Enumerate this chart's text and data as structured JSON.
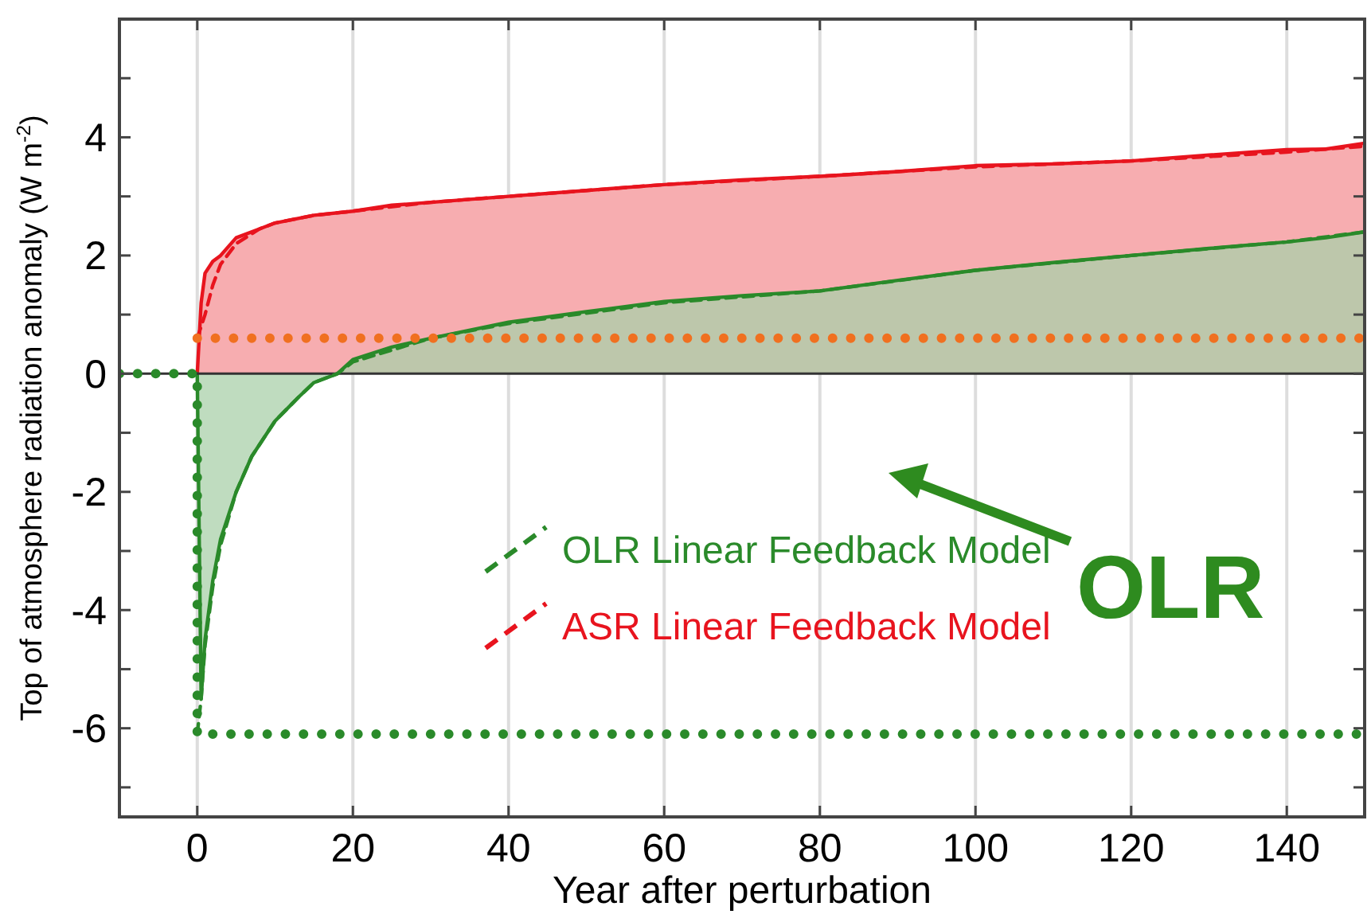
{
  "chart_data": {
    "type": "line",
    "xlabel": "Year after perturbation",
    "ylabel": "Top of atmosphere radiation anomaly (W m$^{-2}$)",
    "xlim": [
      -10,
      150
    ],
    "xticks": [
      0,
      20,
      40,
      60,
      80,
      100,
      120,
      140
    ],
    "ylim": [
      -7.5,
      6
    ],
    "yticks": [
      {
        "value": -7,
        "label": null
      },
      -6,
      {
        "value": -5,
        "label": null
      },
      -4,
      {
        "value": -3,
        "label": null
      },
      -2,
      {
        "value": -1,
        "label": null
      },
      0,
      {
        "value": 1,
        "label": null
      },
      2,
      {
        "value": 3,
        "label": null
      },
      4,
      {
        "value": 5,
        "label": null
      }
    ],
    "grid": "x",
    "legend": "center",
    "marker": "none",
    "ref_lines": [
      {
        "axis": "y",
        "value": 0,
        "color": "#333333"
      }
    ],
    "annotations": [
      "OLR"
    ],
    "series": [
      {
        "type": "area",
        "color": "#e8141e",
        "line_style": "solid",
        "x": [
          0,
          0.5,
          1,
          2,
          3,
          5,
          8,
          10,
          15,
          20,
          25,
          30,
          40,
          50,
          60,
          70,
          80,
          90,
          100,
          110,
          120,
          130,
          140,
          145,
          150
        ],
        "values": [
          0,
          1.2,
          1.7,
          1.9,
          2.0,
          2.3,
          2.45,
          2.55,
          2.68,
          2.75,
          2.85,
          2.9,
          3.0,
          3.1,
          3.2,
          3.28,
          3.34,
          3.42,
          3.52,
          3.55,
          3.6,
          3.7,
          3.79,
          3.8,
          3.9
        ]
      },
      {
        "type": "area",
        "color": "#2a8a2a",
        "line_style": "solid",
        "x": [
          0,
          0.5,
          1,
          2,
          3,
          5,
          7,
          10,
          13,
          15,
          18,
          20,
          25,
          30,
          40,
          50,
          60,
          70,
          80,
          90,
          100,
          110,
          120,
          130,
          140,
          145,
          150
        ],
        "values": [
          0,
          -5.5,
          -4.5,
          -3.5,
          -2.8,
          -2.0,
          -1.4,
          -0.8,
          -0.4,
          -0.15,
          0,
          0.24,
          0.45,
          0.6,
          0.87,
          1.05,
          1.22,
          1.32,
          1.4,
          1.58,
          1.75,
          1.88,
          2.0,
          2.12,
          2.23,
          2.3,
          2.4
        ]
      },
      {
        "name": "ASR Linear Feedback Model",
        "color": "#e8141e",
        "line_style": "dashed",
        "x": [
          0,
          1,
          2,
          3,
          5,
          8,
          10,
          15,
          20,
          30,
          40,
          60,
          80,
          100,
          120,
          140,
          150
        ],
        "values": [
          0.6,
          1.0,
          1.5,
          1.85,
          2.2,
          2.45,
          2.55,
          2.68,
          2.75,
          2.9,
          3.0,
          3.2,
          3.34,
          3.5,
          3.6,
          3.75,
          3.85
        ]
      },
      {
        "name": "OLR Linear Feedback Model",
        "color": "#2a8a2a",
        "line_style": "dashed",
        "x": [
          0,
          0.5,
          1,
          2,
          3,
          5,
          7,
          10,
          13,
          15,
          18,
          20,
          30,
          40,
          60,
          80,
          100,
          120,
          140,
          150
        ],
        "values": [
          -6.1,
          -5.5,
          -4.6,
          -3.6,
          -2.9,
          -2.0,
          -1.4,
          -0.8,
          -0.4,
          -0.15,
          0,
          0.2,
          0.6,
          0.85,
          1.2,
          1.4,
          1.75,
          2.0,
          2.23,
          2.4
        ]
      },
      {
        "color": "#f07020",
        "line_style": "dotted",
        "x": [
          0,
          150
        ],
        "values": [
          0.6,
          0.6
        ]
      },
      {
        "color": "#2a8a2a",
        "line_style": "dotted",
        "x": [
          -10,
          0,
          0,
          150
        ],
        "values": [
          0,
          0,
          -6.1,
          -6.1
        ]
      }
    ]
  }
}
